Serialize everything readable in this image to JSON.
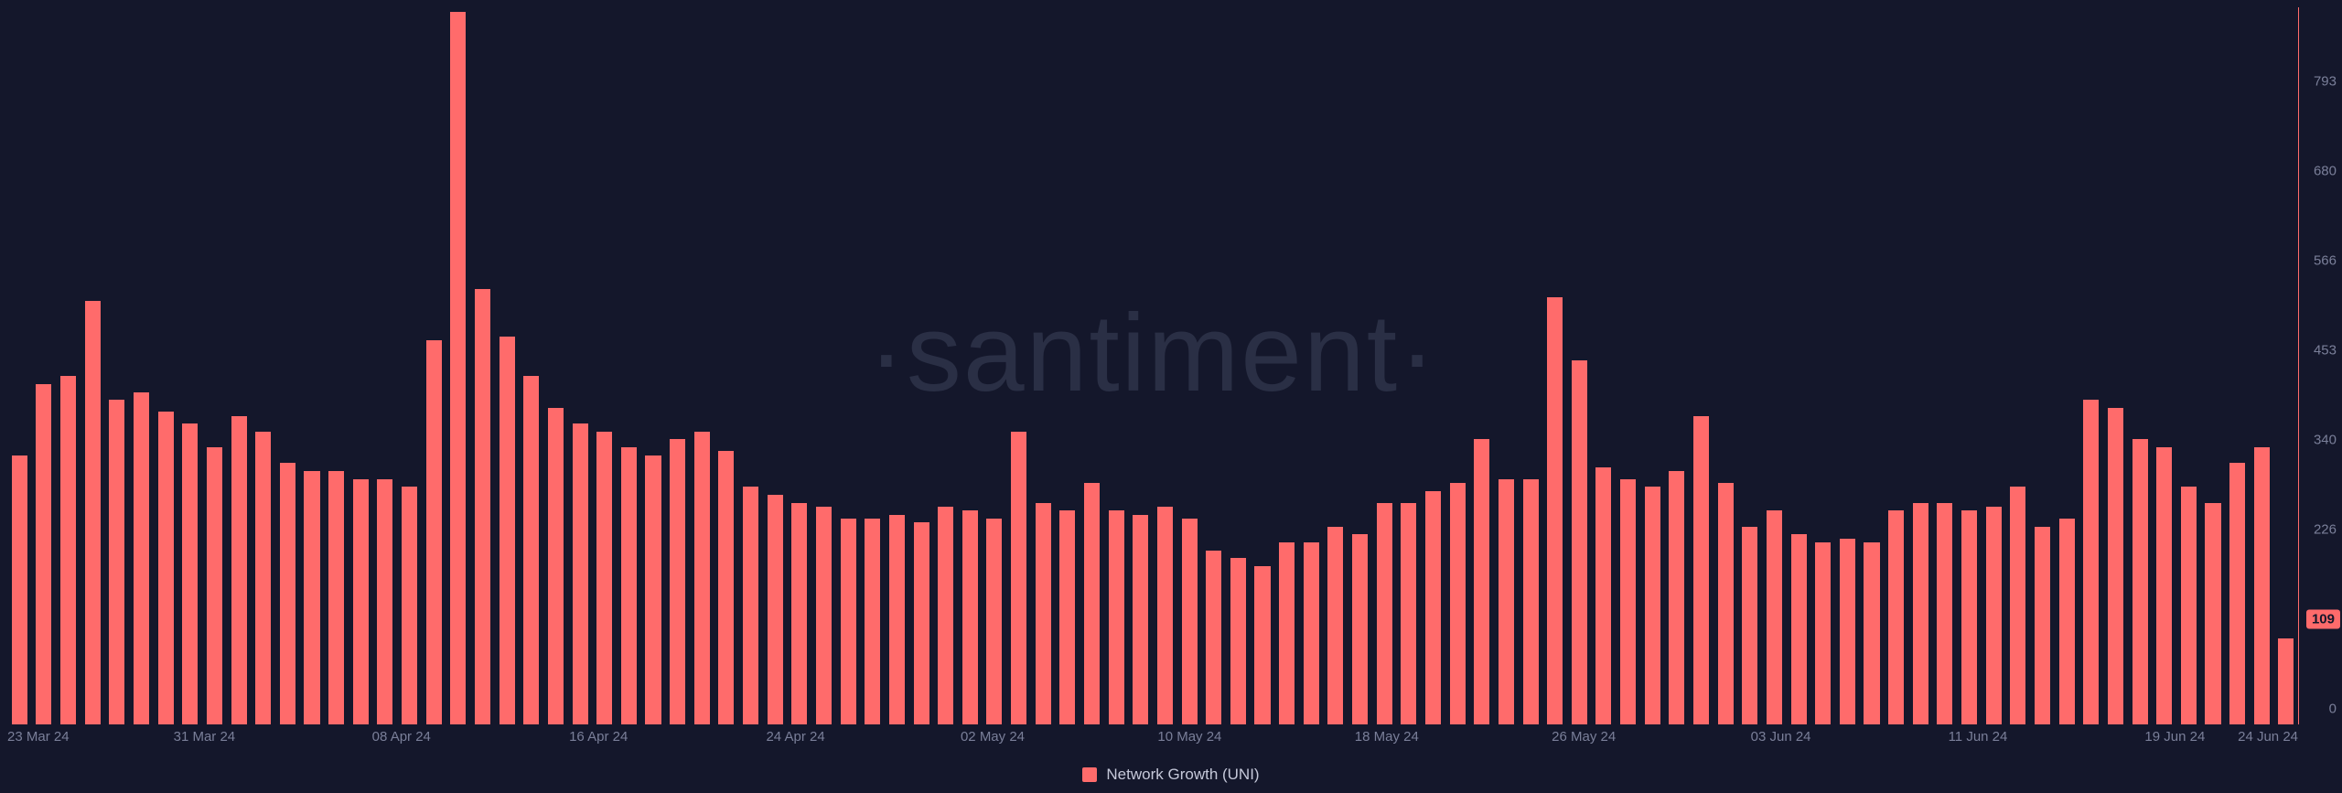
{
  "chart": {
    "type": "bar",
    "watermark": "·santiment·",
    "background_color": "#14172b",
    "bar_color": "#ff6b6b",
    "axis_text_color": "#7a7f99",
    "axis_line_color": "#ff6b6b",
    "legend_text_color": "#c5c8d9",
    "watermark_color": "#2a2f45",
    "ylim": [
      0,
      906
    ],
    "y_ticks": [
      0,
      109,
      226,
      340,
      453,
      566,
      680,
      793,
      906
    ],
    "current_value": 109,
    "current_badge_bg": "#ff6b6b",
    "x_ticks": [
      {
        "label": "23 Mar 24",
        "index": 0
      },
      {
        "label": "31 Mar 24",
        "index": 8
      },
      {
        "label": "08 Apr 24",
        "index": 16
      },
      {
        "label": "16 Apr 24",
        "index": 24
      },
      {
        "label": "24 Apr 24",
        "index": 32
      },
      {
        "label": "02 May 24",
        "index": 40
      },
      {
        "label": "10 May 24",
        "index": 48
      },
      {
        "label": "18 May 24",
        "index": 56
      },
      {
        "label": "26 May 24",
        "index": 64
      },
      {
        "label": "03 Jun 24",
        "index": 72
      },
      {
        "label": "11 Jun 24",
        "index": 80
      },
      {
        "label": "19 Jun 24",
        "index": 88
      },
      {
        "label": "24 Jun 24",
        "index": 93
      }
    ],
    "values": [
      340,
      430,
      440,
      535,
      410,
      420,
      395,
      380,
      350,
      390,
      370,
      330,
      320,
      320,
      310,
      310,
      300,
      485,
      900,
      550,
      490,
      440,
      400,
      380,
      370,
      350,
      340,
      360,
      370,
      345,
      300,
      290,
      280,
      275,
      260,
      260,
      265,
      255,
      275,
      270,
      260,
      370,
      280,
      270,
      305,
      270,
      265,
      275,
      260,
      220,
      210,
      200,
      230,
      230,
      250,
      240,
      280,
      280,
      295,
      305,
      360,
      310,
      310,
      540,
      460,
      325,
      310,
      300,
      320,
      390,
      305,
      250,
      270,
      240,
      230,
      235,
      230,
      270,
      280,
      280,
      270,
      275,
      300,
      250,
      260,
      410,
      400,
      360,
      350,
      300,
      280,
      330,
      350,
      109
    ],
    "legend": {
      "label": "Network Growth (UNI)",
      "swatch_color": "#ff6b6b"
    }
  }
}
